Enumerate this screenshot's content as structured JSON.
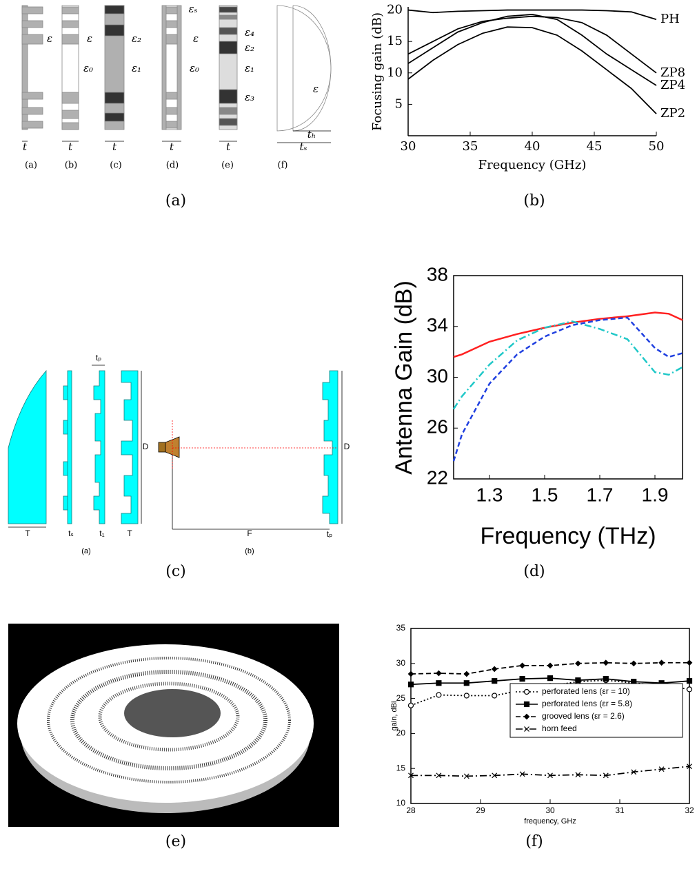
{
  "captions": [
    "(a)",
    "(b)",
    "(c)",
    "(d)",
    "(e)",
    "(f)"
  ],
  "diagram_a": {
    "eps_labels": [
      "ε",
      "ε",
      "ε₀",
      "ε₂",
      "ε₁",
      "εₛ",
      "ε",
      "ε₀",
      "ε₄",
      "ε₂",
      "ε₁",
      "ε₃",
      "ε"
    ],
    "thickness_labels": [
      "t",
      "t",
      "t",
      "t",
      "t",
      "tₕ",
      "tₛ"
    ],
    "sublabels": [
      "(a)",
      "(b)",
      "(c)",
      "(d)",
      "(e)",
      "(f)"
    ]
  },
  "diagram_c": {
    "labels": [
      "tₚ",
      "D",
      "T",
      "tₛ",
      "t₁",
      "T",
      "F",
      "tₚ",
      "D"
    ],
    "sublabels": [
      "(a)",
      "(b)"
    ]
  },
  "chart_data": [
    {
      "type": "line",
      "xlabel": "Frequency (GHz)",
      "ylabel": "Focusing gain (dB)",
      "x": [
        30,
        32,
        34,
        36,
        38,
        40,
        42,
        44,
        46,
        48,
        50
      ],
      "xlim": [
        30,
        50
      ],
      "ylim": [
        0,
        20.5
      ],
      "xticks": [
        30,
        35,
        40,
        45,
        50
      ],
      "yticks": [
        5,
        10,
        15,
        20
      ],
      "line_labels": true,
      "series": [
        {
          "name": "PH",
          "color": "#000000",
          "values": [
            20,
            19.6,
            19.8,
            19.9,
            20,
            20,
            20,
            20,
            19.9,
            19.7,
            18.5
          ]
        },
        {
          "name": "ZP8",
          "color": "#000000",
          "values": [
            13,
            15,
            17,
            18.2,
            18.7,
            19,
            18.8,
            18,
            16,
            13,
            10
          ]
        },
        {
          "name": "ZP4",
          "color": "#000000",
          "values": [
            11.5,
            14,
            16.5,
            18,
            19,
            19.3,
            18.5,
            16,
            13,
            10.5,
            8
          ]
        },
        {
          "name": "ZP2",
          "color": "#000000",
          "values": [
            9,
            12,
            14.5,
            16.3,
            17.3,
            17.2,
            16,
            13.5,
            10.5,
            7.5,
            3.5
          ]
        }
      ]
    },
    {
      "type": "line",
      "xlabel": "Frequency (THz)",
      "ylabel": "Antenna Gain (dB)",
      "x": [
        1.17,
        1.2,
        1.3,
        1.4,
        1.5,
        1.6,
        1.7,
        1.8,
        1.9,
        1.95,
        2.0
      ],
      "xlim": [
        1.17,
        2.0
      ],
      "ylim": [
        22,
        38
      ],
      "xticks": [
        1.3,
        1.5,
        1.7,
        1.9
      ],
      "yticks": [
        22,
        26,
        30,
        34,
        38
      ],
      "series": [
        {
          "color": "#ff2020",
          "dash": "solid",
          "values": [
            31.6,
            31.8,
            32.8,
            33.4,
            33.9,
            34.3,
            34.6,
            34.8,
            35.1,
            35.0,
            34.5
          ]
        },
        {
          "color": "#20c8c8",
          "dash": "dashdot",
          "values": [
            27.5,
            28.5,
            31,
            32.9,
            33.9,
            34.4,
            33.8,
            33,
            30.4,
            30.2,
            30.8
          ]
        },
        {
          "color": "#2040e0",
          "dash": "dashed",
          "values": [
            23.4,
            25.5,
            29.5,
            31.8,
            33.2,
            34.1,
            34.5,
            34.7,
            32.3,
            31.6,
            31.9
          ]
        }
      ]
    },
    {
      "type": "line",
      "xlabel": "frequency, GHz",
      "ylabel": "gain, dBi",
      "x": [
        28,
        28.4,
        28.8,
        29.2,
        29.6,
        30,
        30.4,
        30.8,
        31.2,
        31.6,
        32
      ],
      "xlim": [
        28,
        32
      ],
      "ylim": [
        10,
        35
      ],
      "xticks": [
        28,
        29,
        30,
        31,
        32
      ],
      "yticks": [
        10,
        15,
        20,
        25,
        30,
        35
      ],
      "legend": "inside-right",
      "series": [
        {
          "name": "perforated lens (εr = 10)",
          "color": "#000000",
          "dash": "dotted",
          "marker": "circle",
          "values": [
            24,
            25.5,
            25.4,
            25.4,
            26.2,
            26.8,
            27.4,
            27.6,
            27.2,
            26.9,
            26.3
          ]
        },
        {
          "name": "perforated lens (εr = 5.8)",
          "color": "#000000",
          "dash": "solid",
          "marker": "square",
          "values": [
            27,
            27.2,
            27.2,
            27.5,
            27.8,
            27.9,
            27.6,
            27.8,
            27.4,
            27.2,
            27.5
          ]
        },
        {
          "name": "grooved lens (εr = 2.6)",
          "color": "#000000",
          "dash": "dashed",
          "marker": "diamond",
          "values": [
            28.5,
            28.6,
            28.5,
            29.2,
            29.7,
            29.7,
            30,
            30.1,
            30,
            30.1,
            30.1
          ]
        },
        {
          "name": "horn feed",
          "color": "#000000",
          "dash": "dashdot",
          "marker": "cross",
          "values": [
            14,
            14,
            13.9,
            14,
            14.2,
            14,
            14.1,
            14,
            14.5,
            14.9,
            15.3
          ]
        }
      ]
    }
  ]
}
